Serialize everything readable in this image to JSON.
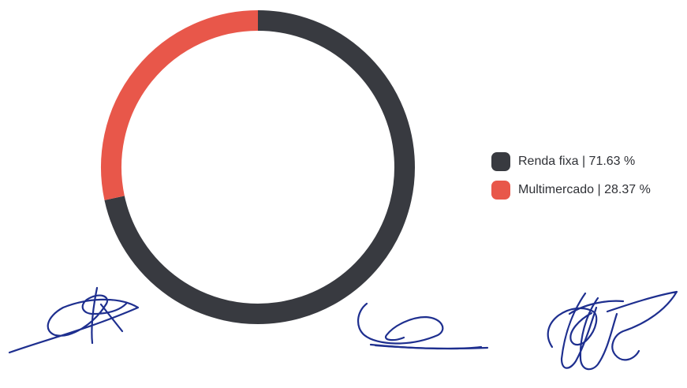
{
  "chart_data": {
    "type": "pie",
    "variant": "donut",
    "title": "",
    "start_angle_deg": 0,
    "direction": "clockwise",
    "slices": [
      {
        "label": "Renda fixa",
        "value": 71.63,
        "color": "#383a40",
        "legend_text": "Renda fixa | 71.63 %"
      },
      {
        "label": "Multimercado",
        "value": 28.37,
        "color": "#e8574a",
        "legend_text": "Multimercado | 28.37 %"
      }
    ],
    "legend_position": "right"
  },
  "signature_color": "#1e2f8f",
  "signatures": [
    "signature-1",
    "signature-2",
    "signature-3"
  ]
}
